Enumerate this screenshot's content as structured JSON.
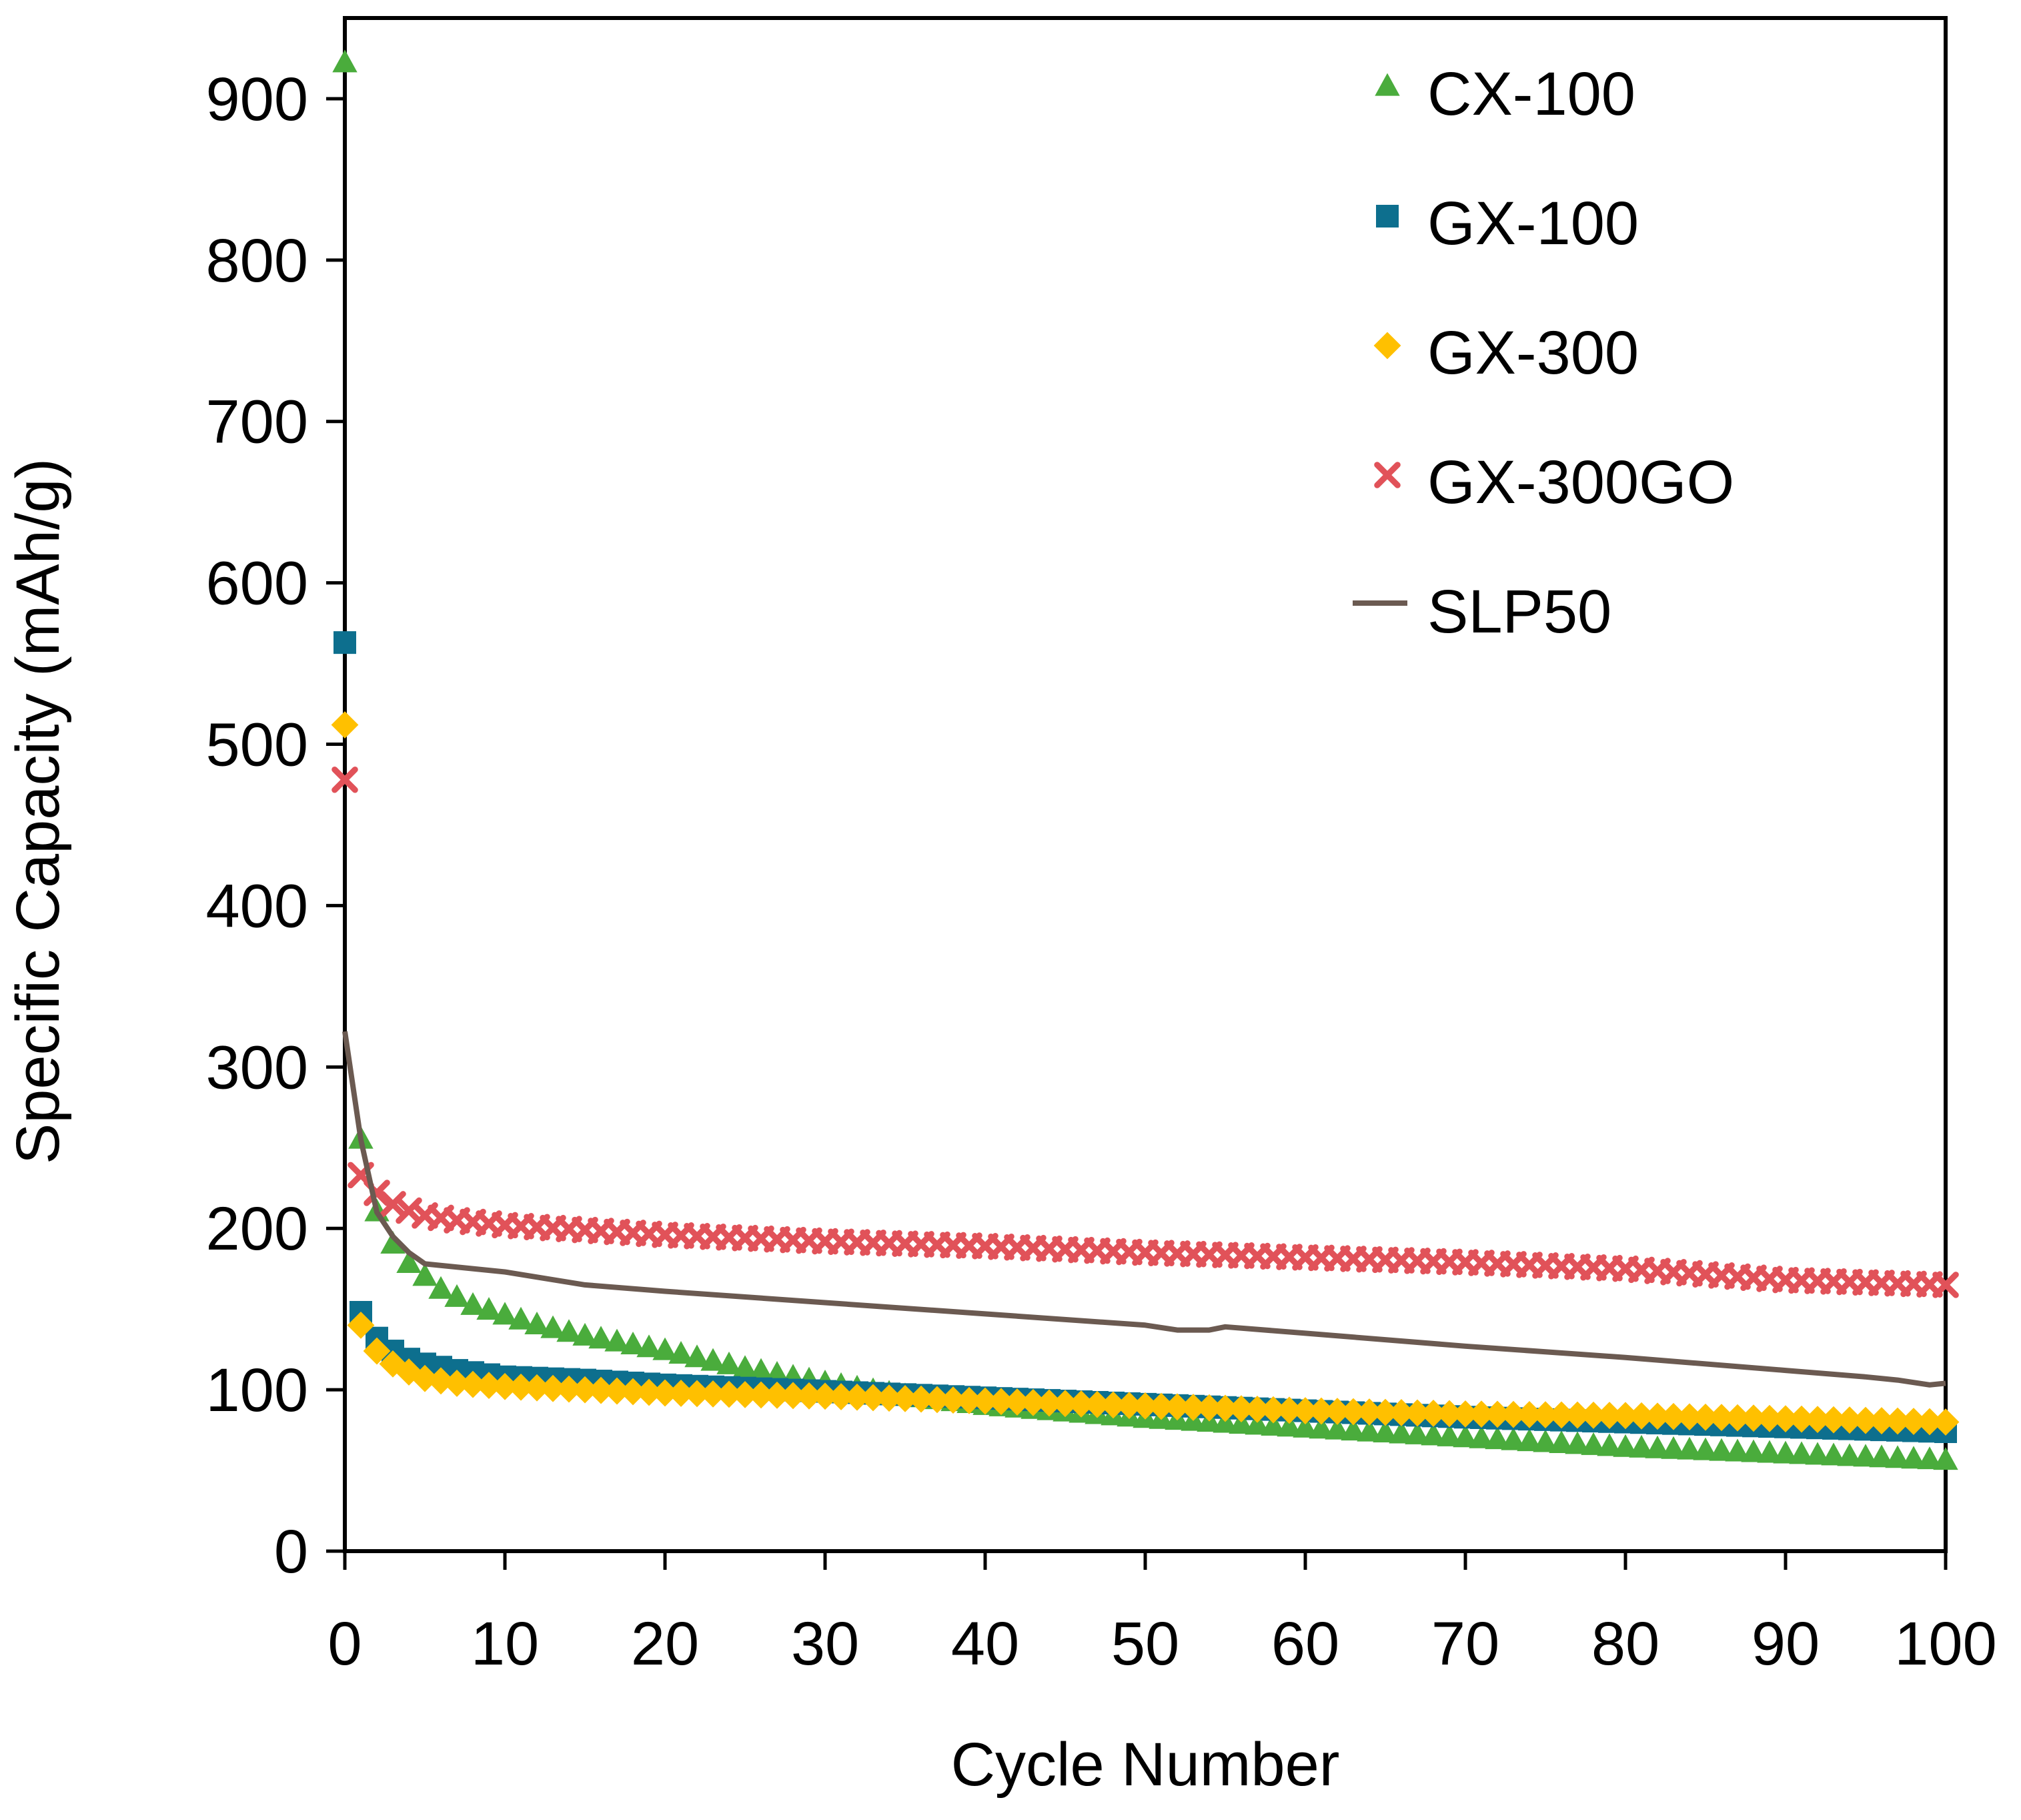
{
  "chart_data": {
    "type": "scatter",
    "title": "",
    "xlabel": "Cycle Number",
    "ylabel": "Specific Capacity (mAh/g)",
    "xlim": [
      0,
      100
    ],
    "ylim": [
      0,
      950
    ],
    "xticks": [
      0,
      10,
      20,
      30,
      40,
      50,
      60,
      70,
      80,
      90,
      100
    ],
    "yticks": [
      0,
      100,
      200,
      300,
      400,
      500,
      600,
      700,
      800,
      900
    ],
    "grid": false,
    "legend_position": "top-right",
    "series": [
      {
        "name": "CX-100",
        "marker": "triangle",
        "color": "#4aac3c",
        "keypoints": [
          [
            0,
            922
          ],
          [
            1,
            255
          ],
          [
            2,
            210
          ],
          [
            3,
            190
          ],
          [
            4,
            178
          ],
          [
            5,
            170
          ],
          [
            6,
            162
          ],
          [
            8,
            152
          ],
          [
            10,
            146
          ],
          [
            12,
            140
          ],
          [
            15,
            133
          ],
          [
            20,
            124
          ],
          [
            25,
            113
          ],
          [
            30,
            104
          ],
          [
            35,
            96
          ],
          [
            40,
            90
          ],
          [
            45,
            86
          ],
          [
            50,
            82
          ],
          [
            55,
            79
          ],
          [
            60,
            76
          ],
          [
            65,
            73
          ],
          [
            70,
            70
          ],
          [
            75,
            67
          ],
          [
            80,
            64
          ],
          [
            85,
            62
          ],
          [
            90,
            60
          ],
          [
            95,
            58
          ],
          [
            100,
            56
          ]
        ]
      },
      {
        "name": "GX-100",
        "marker": "square",
        "color": "#0d6f8e",
        "keypoints": [
          [
            0,
            563
          ],
          [
            1,
            148
          ],
          [
            2,
            132
          ],
          [
            3,
            124
          ],
          [
            4,
            119
          ],
          [
            5,
            116
          ],
          [
            7,
            112
          ],
          [
            10,
            108
          ],
          [
            15,
            106
          ],
          [
            20,
            103
          ],
          [
            25,
            101
          ],
          [
            30,
            99
          ],
          [
            40,
            95
          ],
          [
            50,
            91
          ],
          [
            60,
            87
          ],
          [
            70,
            83
          ],
          [
            80,
            80
          ],
          [
            90,
            77
          ],
          [
            100,
            74
          ]
        ]
      },
      {
        "name": "GX-300",
        "marker": "diamond",
        "color": "#ffc000",
        "keypoints": [
          [
            0,
            512
          ],
          [
            1,
            140
          ],
          [
            2,
            124
          ],
          [
            3,
            116
          ],
          [
            4,
            111
          ],
          [
            5,
            107
          ],
          [
            7,
            104
          ],
          [
            10,
            102
          ],
          [
            15,
            100
          ],
          [
            20,
            98
          ],
          [
            30,
            96
          ],
          [
            40,
            93
          ],
          [
            50,
            90
          ],
          [
            60,
            87
          ],
          [
            70,
            85
          ],
          [
            80,
            84
          ],
          [
            90,
            82
          ],
          [
            100,
            80
          ]
        ]
      },
      {
        "name": "GX-300GO",
        "marker": "x",
        "color": "#e15259",
        "keypoints": [
          [
            0,
            478
          ],
          [
            1,
            233
          ],
          [
            2,
            222
          ],
          [
            3,
            215
          ],
          [
            4,
            211
          ],
          [
            5,
            208
          ],
          [
            7,
            205
          ],
          [
            10,
            202
          ],
          [
            15,
            199
          ],
          [
            20,
            196
          ],
          [
            30,
            192
          ],
          [
            40,
            189
          ],
          [
            50,
            185
          ],
          [
            60,
            182
          ],
          [
            70,
            179
          ],
          [
            80,
            175
          ],
          [
            90,
            168
          ],
          [
            100,
            165
          ]
        ]
      },
      {
        "name": "SLP50",
        "marker": "line",
        "color": "#6b5a51",
        "points": [
          [
            0,
            322
          ],
          [
            1,
            255
          ],
          [
            2,
            210
          ],
          [
            3,
            195
          ],
          [
            4,
            185
          ],
          [
            5,
            178
          ],
          [
            10,
            173
          ],
          [
            15,
            165
          ],
          [
            20,
            161
          ],
          [
            30,
            154
          ],
          [
            40,
            147
          ],
          [
            50,
            140
          ],
          [
            52,
            137
          ],
          [
            54,
            137
          ],
          [
            55,
            139
          ],
          [
            60,
            135
          ],
          [
            70,
            127
          ],
          [
            80,
            120
          ],
          [
            90,
            112
          ],
          [
            95,
            108
          ],
          [
            97,
            106
          ],
          [
            99,
            103
          ],
          [
            100,
            104
          ]
        ]
      }
    ]
  }
}
